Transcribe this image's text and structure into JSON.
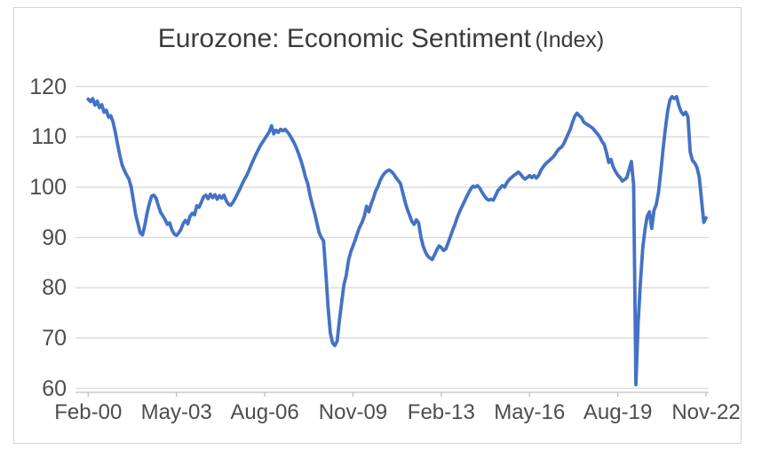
{
  "title": {
    "main": "Eurozone: Economic Sentiment",
    "suffix": "(Index)"
  },
  "colors": {
    "line": "#4472C4",
    "gridline": "#D9D9D9",
    "axis_line": "#BFBFBF",
    "axis_text": "#4D4D4D",
    "title_text": "#3B3B3B",
    "frame_border": "#D4D4D4",
    "background": "#FFFFFF"
  },
  "chart_data": {
    "type": "line",
    "title": "Eurozone: Economic Sentiment (Index)",
    "xlabel": "",
    "ylabel": "",
    "ylim": [
      60,
      120
    ],
    "y_ticks": [
      60,
      70,
      80,
      90,
      100,
      110,
      120
    ],
    "x_tick_labels": [
      "Feb-00",
      "May-03",
      "Aug-06",
      "Nov-09",
      "Feb-13",
      "May-16",
      "Aug-19",
      "Nov-22"
    ],
    "x_range": {
      "start": "Feb-00",
      "end": "Nov-22",
      "frequency": "monthly",
      "points": 274
    },
    "grid": "horizontal",
    "legend": "none",
    "series": [
      {
        "name": "Eurozone Economic Sentiment Index",
        "color": "#4472C4",
        "values": [
          117.5,
          117.0,
          117.6,
          116.3,
          117.1,
          115.8,
          116.4,
          114.9,
          115.3,
          113.9,
          114.2,
          112.9,
          110.9,
          108.5,
          106.3,
          104.4,
          103.3,
          102.4,
          101.6,
          100.0,
          97.3,
          94.5,
          92.7,
          90.9,
          90.5,
          92.4,
          94.8,
          96.7,
          98.2,
          98.4,
          97.8,
          96.3,
          95.0,
          94.3,
          93.5,
          92.6,
          92.9,
          91.5,
          90.7,
          90.4,
          90.9,
          91.6,
          92.8,
          93.4,
          92.7,
          94.2,
          94.8,
          94.5,
          96.3,
          96.0,
          97.0,
          98.1,
          98.4,
          97.7,
          98.6,
          97.9,
          98.5,
          97.6,
          98.3,
          97.8,
          98.4,
          97.3,
          96.6,
          96.4,
          97.0,
          97.8,
          98.7,
          99.6,
          100.6,
          101.5,
          102.3,
          103.3,
          104.4,
          105.4,
          106.4,
          107.3,
          108.2,
          108.9,
          109.6,
          110.3,
          111.0,
          112.2,
          110.6,
          111.3,
          110.9,
          111.5,
          111.2,
          111.5,
          111.0,
          110.4,
          109.6,
          108.8,
          107.8,
          106.6,
          105.3,
          103.8,
          102.0,
          100.7,
          98.4,
          96.6,
          94.9,
          93.0,
          91.0,
          90.0,
          89.3,
          83.0,
          76.0,
          71.0,
          69.0,
          68.5,
          69.4,
          73.5,
          77.1,
          80.6,
          82.4,
          85.4,
          87.1,
          88.3,
          89.5,
          90.9,
          92.1,
          93.0,
          94.2,
          96.2,
          95.1,
          96.6,
          97.8,
          99.2,
          100.1,
          101.3,
          102.2,
          102.8,
          103.2,
          103.4,
          103.1,
          102.6,
          101.9,
          101.3,
          100.7,
          98.9,
          97.1,
          95.6,
          94.4,
          93.2,
          92.6,
          93.5,
          92.9,
          90.1,
          88.3,
          87.1,
          86.3,
          85.9,
          85.6,
          86.5,
          87.5,
          88.3,
          88.0,
          87.4,
          87.7,
          88.9,
          90.1,
          91.4,
          92.5,
          93.9,
          95.0,
          96.0,
          96.9,
          97.9,
          98.8,
          99.6,
          100.2,
          100.0,
          100.3,
          99.8,
          99.0,
          98.3,
          97.7,
          97.4,
          97.6,
          97.4,
          98.3,
          99.3,
          99.8,
          100.3,
          100.0,
          100.9,
          101.5,
          101.9,
          102.3,
          102.6,
          103.0,
          102.6,
          102.0,
          101.6,
          101.9,
          102.3,
          101.9,
          102.3,
          101.8,
          102.3,
          103.3,
          104.0,
          104.6,
          105.0,
          105.4,
          105.8,
          106.3,
          107.0,
          107.6,
          107.9,
          108.5,
          109.5,
          110.5,
          111.5,
          112.9,
          114.1,
          114.7,
          114.2,
          113.8,
          112.9,
          112.6,
          112.3,
          112.0,
          111.7,
          111.1,
          110.6,
          110.0,
          109.1,
          108.5,
          106.9,
          104.9,
          105.5,
          104.0,
          103.1,
          102.4,
          101.9,
          101.2,
          101.5,
          101.9,
          103.5,
          105.1,
          100.5,
          60.7,
          73.0,
          81.0,
          87.7,
          91.5,
          94.2,
          95.1,
          91.8,
          95.4,
          96.5,
          99.0,
          103.0,
          107.5,
          111.5,
          115.0,
          117.3,
          118.0,
          117.6,
          118.0,
          116.2,
          115.0,
          114.4,
          114.9,
          114.0,
          107.0,
          105.3,
          104.8,
          103.9,
          102.0,
          97.5,
          93.0,
          93.9
        ]
      }
    ]
  }
}
